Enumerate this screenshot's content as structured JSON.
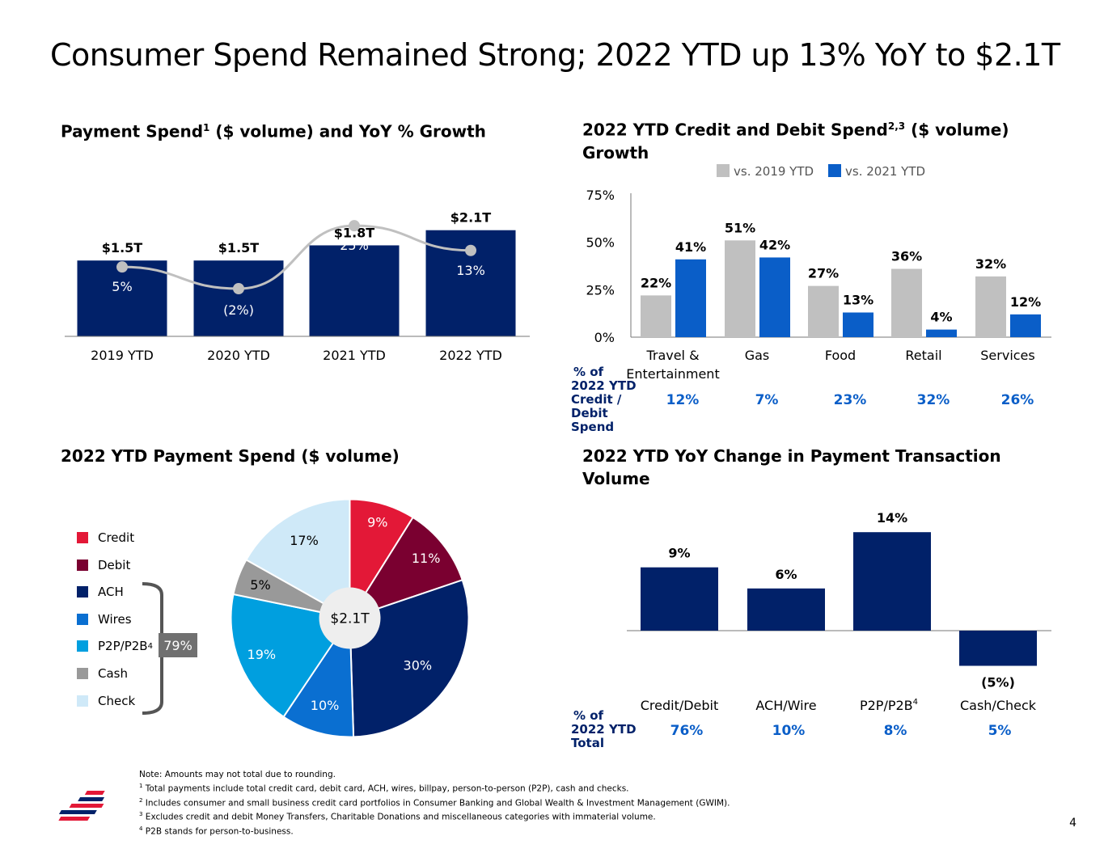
{
  "title": "Consumer Spend Remained Strong; 2022 YTD up 13% YoY to $2.1T",
  "panel1": {
    "title": "Payment Spend",
    "title_sup": "1",
    "title_rest": " ($ volume) and YoY % Growth"
  },
  "panel2": {
    "title_line1": "2022 YTD Credit and Debit Spend",
    "title_sup": "2,3",
    "title_line1_rest": " ($ volume)",
    "title_line2": "Growth",
    "row_label": [
      "% of",
      "2022 YTD",
      "Credit /",
      "Debit",
      "Spend"
    ],
    "row_values": [
      "12%",
      "7%",
      "23%",
      "32%",
      "26%"
    ]
  },
  "panel3": {
    "title": "2022 YTD Payment Spend",
    "title_rest": " ($ volume)",
    "center_label": "$2.1T",
    "bracket_label": "79%"
  },
  "panel4": {
    "title_line1": "2022 YTD YoY Change in Payment Transaction",
    "title_line2": "Volume",
    "row_label": [
      "% of",
      "2022 YTD",
      "Total"
    ],
    "row_values": [
      "76%",
      "10%",
      "8%",
      "5%"
    ]
  },
  "notes": {
    "line0": "Note: Amounts may not total due to rounding.",
    "line1_sup": "1",
    "line1": " Total payments include total credit card, debit card, ACH, wires, billpay, person-to-person (P2P), cash and checks.",
    "line2_sup": "2",
    "line2": " Includes consumer and small business credit card portfolios in Consumer Banking and Global Wealth & Investment Management (GWIM).",
    "line3_sup": "3",
    "line3": " Excludes credit and debit Money Transfers, Charitable Donations and miscellaneous categories with immaterial volume.",
    "line4_sup": "4",
    "line4": " P2B stands for person-to-business."
  },
  "page_number": "4",
  "colors": {
    "navy": "#012169",
    "blue": "#0a5ec8",
    "gray": "#c0c0c0",
    "credit": "#e31837",
    "debit": "#7a0030",
    "ach": "#012169",
    "wires": "#0a6fd1",
    "p2p": "#009fdf",
    "cash": "#999999",
    "check": "#cfe9f8",
    "line": "#c0c0c0"
  },
  "chart_data": [
    {
      "type": "bar",
      "categories": [
        "2019 YTD",
        "2020 YTD",
        "2021 YTD",
        "2022 YTD"
      ],
      "series": [
        {
          "values": [
            1.5,
            1.5,
            1.8,
            2.1
          ],
          "labels": [
            "$1.5T",
            "$1.5T",
            "$1.8T",
            "$2.1T"
          ]
        },
        {
          "values": [
            5,
            -2,
            25,
            13
          ],
          "labels": [
            "5%",
            "(2%)",
            "25%",
            "13%"
          ]
        }
      ]
    },
    {
      "type": "bar",
      "categories": [
        "Travel &\nEntertainment",
        "Gas",
        "Food",
        "Retail",
        "Services"
      ],
      "series": [
        {
          "name": "vs. 2019 YTD",
          "values": [
            22,
            51,
            27,
            36,
            32
          ]
        },
        {
          "name": "vs. 2021 YTD",
          "values": [
            41,
            42,
            13,
            4,
            12
          ]
        }
      ],
      "yticks": [
        "75%",
        "50%",
        "25%",
        "0%"
      ],
      "ylim": [
        0,
        75
      ],
      "legend": "top"
    },
    {
      "type": "pie",
      "labels": [
        "Credit",
        "Debit",
        "ACH",
        "Wires",
        "P2P/P2B",
        "Cash",
        "Check"
      ],
      "label_sups": [
        "",
        "",
        "",
        "",
        "4",
        "",
        ""
      ],
      "values": [
        9,
        11,
        30,
        10,
        19,
        5,
        17
      ],
      "value_labels": [
        "9%",
        "11%",
        "30%",
        "10%",
        "19%",
        "5%",
        "17%"
      ]
    },
    {
      "type": "bar",
      "categories": [
        "Credit/Debit",
        "ACH/Wire",
        "P2P/P2B",
        "Cash/Check"
      ],
      "category_sups": [
        "",
        "",
        "4",
        ""
      ],
      "values": [
        9,
        6,
        14,
        -5
      ],
      "value_labels": [
        "9%",
        "6%",
        "14%",
        "(5%)"
      ]
    }
  ]
}
